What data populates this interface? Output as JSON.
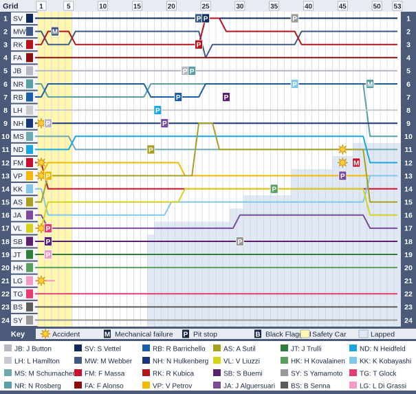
{
  "chart_data": {
    "type": "line",
    "header_label": "Grid",
    "lap_ticks": [
      "1",
      "5",
      "10",
      "15",
      "20",
      "25",
      "30",
      "35",
      "40",
      "45",
      "50",
      "53"
    ],
    "position_labels": [
      "1",
      "2",
      "3",
      "4",
      "5",
      "6",
      "7",
      "8",
      "9",
      "10",
      "11",
      "12",
      "13",
      "14",
      "15",
      "16",
      "17",
      "18",
      "19",
      "20",
      "21",
      "22",
      "23",
      "24"
    ],
    "grid": [
      "SV",
      "MW",
      "RK",
      "FA",
      "JB",
      "NR",
      "RB",
      "LH",
      "NH",
      "MS",
      "ND",
      "FM",
      "VP",
      "KK",
      "AS",
      "JA",
      "VL",
      "SB",
      "JT",
      "HK",
      "LG",
      "TG",
      "BS",
      "SY"
    ],
    "drivers": {
      "SV": {
        "color": "#0d2a5c",
        "light": false,
        "name": "S Vettel"
      },
      "MW": {
        "color": "#3d5a85",
        "light": false,
        "name": "M Webber"
      },
      "RK": {
        "color": "#b5121b",
        "light": false,
        "name": "R Kubica"
      },
      "FA": {
        "color": "#8a1010",
        "light": false,
        "name": "F Alonso"
      },
      "JB": {
        "color": "#b8b8c4",
        "light": true,
        "name": "J Button"
      },
      "NR": {
        "color": "#5a9ea6",
        "light": false,
        "name": "N Rosberg"
      },
      "RB": {
        "color": "#1a5ea8",
        "light": false,
        "name": "R Barrichello"
      },
      "LH": {
        "color": "#c9c9d2",
        "light": true,
        "name": "L Hamilton"
      },
      "NH": {
        "color": "#19357a",
        "light": false,
        "name": "N Hulkenberg"
      },
      "MS": {
        "color": "#6fa8b0",
        "light": false,
        "name": "M Schumacher"
      },
      "ND": {
        "color": "#1ba6e0",
        "light": false,
        "name": "N Heidfeld"
      },
      "FM": {
        "color": "#c8102e",
        "light": false,
        "name": "F Massa"
      },
      "VP": {
        "color": "#f5b800",
        "light": true,
        "name": "V Petrov"
      },
      "KK": {
        "color": "#7fc8e8",
        "light": true,
        "name": "K Kobayashi"
      },
      "AS": {
        "color": "#a7a020",
        "light": false,
        "name": "A Sutil"
      },
      "JA": {
        "color": "#7a4a9c",
        "light": false,
        "name": "J Alguersuari"
      },
      "VL": {
        "color": "#d7d21a",
        "light": true,
        "name": "V Liuzzi"
      },
      "SB": {
        "color": "#5a1f6e",
        "light": false,
        "name": "S Buemi"
      },
      "JT": {
        "color": "#2e7d3c",
        "light": false,
        "name": "J Trulli"
      },
      "HK": {
        "color": "#5a9f5e",
        "light": false,
        "name": "H Kovalainen"
      },
      "LG": {
        "color": "#f29bc7",
        "light": true,
        "name": "L Di Grassi"
      },
      "TG": {
        "color": "#e63c72",
        "light": false,
        "name": "T Glock"
      },
      "BS": {
        "color": "#5c5c5c",
        "light": false,
        "name": "B Senna"
      },
      "SY": {
        "color": "#9a9a9a",
        "light": false,
        "name": "S Yamamoto"
      }
    },
    "series": [
      {
        "code": "SV",
        "points": [
          [
            0,
            1
          ],
          [
            53,
            1
          ]
        ]
      },
      {
        "code": "MW",
        "points": [
          [
            0,
            2
          ],
          [
            1,
            2
          ],
          [
            2,
            3
          ],
          [
            5,
            3
          ],
          [
            6,
            2
          ],
          [
            24,
            2
          ],
          [
            25,
            4
          ],
          [
            26,
            3
          ],
          [
            38,
            3
          ],
          [
            39,
            2
          ],
          [
            53,
            2
          ]
        ]
      },
      {
        "code": "RK",
        "points": [
          [
            0,
            3
          ],
          [
            1,
            3
          ],
          [
            2,
            2
          ],
          [
            5,
            2
          ],
          [
            6,
            3
          ],
          [
            24,
            3
          ],
          [
            25,
            1
          ],
          [
            26,
            1
          ],
          [
            27,
            1
          ],
          [
            28,
            2
          ],
          [
            38,
            2
          ],
          [
            39,
            3
          ],
          [
            53,
            3
          ]
        ]
      },
      {
        "code": "FA",
        "points": [
          [
            0,
            4
          ],
          [
            1,
            4
          ],
          [
            2,
            4
          ],
          [
            53,
            4
          ]
        ]
      },
      {
        "code": "JB",
        "points": [
          [
            0,
            5
          ],
          [
            53,
            5
          ]
        ]
      },
      {
        "code": "NR",
        "points": [
          [
            0,
            6
          ],
          [
            1,
            6
          ],
          [
            2,
            7
          ],
          [
            16,
            7
          ],
          [
            17,
            6
          ],
          [
            48,
            6
          ],
          [
            49,
            10
          ],
          [
            53,
            10
          ]
        ]
      },
      {
        "code": "RB",
        "points": [
          [
            0,
            7
          ],
          [
            1,
            7
          ],
          [
            2,
            6
          ],
          [
            16,
            6
          ],
          [
            17,
            7
          ],
          [
            24,
            7
          ],
          [
            25,
            6
          ],
          [
            53,
            6
          ]
        ]
      },
      {
        "code": "LH",
        "points": [
          [
            0,
            8
          ],
          [
            53,
            8
          ]
        ]
      },
      {
        "code": "NH",
        "points": [
          [
            0,
            9
          ],
          [
            53,
            9
          ]
        ]
      },
      {
        "code": "MS",
        "points": [
          [
            0,
            10
          ],
          [
            5,
            10
          ],
          [
            6,
            11
          ],
          [
            53,
            11
          ]
        ]
      },
      {
        "code": "ND",
        "points": [
          [
            0,
            11
          ],
          [
            5,
            11
          ],
          [
            6,
            10
          ],
          [
            48,
            10
          ],
          [
            49,
            12
          ],
          [
            53,
            12
          ]
        ]
      },
      {
        "code": "FM",
        "points": [
          [
            0,
            12
          ],
          [
            1,
            12
          ],
          [
            2,
            14
          ],
          [
            53,
            14
          ]
        ]
      },
      {
        "code": "VP",
        "points": [
          [
            0,
            13
          ],
          [
            1,
            13
          ],
          [
            2,
            12
          ],
          [
            21,
            12
          ],
          [
            22,
            13
          ],
          [
            53,
            13
          ]
        ]
      },
      {
        "code": "KK",
        "points": [
          [
            0,
            14
          ],
          [
            1,
            14
          ],
          [
            2,
            16
          ],
          [
            19,
            16
          ],
          [
            20,
            15
          ],
          [
            48,
            15
          ],
          [
            49,
            13
          ],
          [
            53,
            13
          ]
        ]
      },
      {
        "code": "AS",
        "points": [
          [
            0,
            15
          ],
          [
            1,
            15
          ],
          [
            2,
            13
          ],
          [
            23,
            13
          ],
          [
            24,
            9
          ],
          [
            26,
            9
          ],
          [
            27,
            11
          ],
          [
            48,
            11
          ],
          [
            49,
            15
          ],
          [
            53,
            15
          ]
        ]
      },
      {
        "code": "JA",
        "points": [
          [
            0,
            16
          ],
          [
            1,
            16
          ],
          [
            2,
            17
          ],
          [
            29,
            17
          ],
          [
            30,
            16
          ],
          [
            48,
            16
          ],
          [
            49,
            17
          ],
          [
            53,
            17
          ]
        ]
      },
      {
        "code": "VL",
        "points": [
          [
            0,
            17
          ],
          [
            1,
            17
          ],
          [
            2,
            15
          ],
          [
            21,
            15
          ],
          [
            22,
            14
          ],
          [
            48,
            14
          ],
          [
            49,
            16
          ],
          [
            53,
            16
          ]
        ]
      },
      {
        "code": "SB",
        "points": [
          [
            0,
            18
          ],
          [
            1,
            18
          ],
          [
            2,
            18
          ],
          [
            53,
            18
          ]
        ]
      },
      {
        "code": "JT",
        "points": [
          [
            0,
            19
          ],
          [
            1,
            19
          ],
          [
            2,
            19
          ],
          [
            53,
            19
          ]
        ]
      },
      {
        "code": "HK",
        "points": [
          [
            0,
            20
          ],
          [
            53,
            20
          ]
        ]
      },
      {
        "code": "LG",
        "points": [
          [
            0,
            21
          ],
          [
            2,
            21
          ],
          [
            3,
            21
          ]
        ]
      },
      {
        "code": "TG",
        "points": [
          [
            0,
            22
          ],
          [
            53,
            22
          ]
        ]
      },
      {
        "code": "BS",
        "points": [
          [
            0,
            23
          ],
          [
            53,
            23
          ]
        ]
      },
      {
        "code": "SY",
        "points": [
          [
            0,
            24
          ],
          [
            53,
            24
          ]
        ]
      }
    ],
    "events": [
      {
        "type": "accident",
        "lap": 1,
        "pos": 9
      },
      {
        "type": "accident",
        "lap": 1,
        "pos": 12
      },
      {
        "type": "accident",
        "lap": 1,
        "pos": 13
      },
      {
        "type": "accident",
        "lap": 1,
        "pos": 17
      },
      {
        "type": "accident",
        "lap": 1,
        "pos": 21
      },
      {
        "type": "accident",
        "lap": 45,
        "pos": 11
      },
      {
        "type": "accident",
        "lap": 45,
        "pos": 12
      },
      {
        "type": "accident",
        "lap": 49,
        "pos": 6
      },
      {
        "type": "mechanical",
        "lap": 3,
        "pos": 2,
        "code": "MW"
      },
      {
        "type": "mechanical",
        "lap": 47,
        "pos": 12,
        "code": "FM"
      },
      {
        "type": "mechanical",
        "lap": 49,
        "pos": 6,
        "code": "NR"
      },
      {
        "type": "pit",
        "lap": 24,
        "pos": 1,
        "code": "MW"
      },
      {
        "type": "pit",
        "lap": 25,
        "pos": 1,
        "code": "SV"
      },
      {
        "type": "pit",
        "lap": 24,
        "pos": 3,
        "code": "RK"
      },
      {
        "type": "pit",
        "lap": 22,
        "pos": 5,
        "code": "JB"
      },
      {
        "type": "pit",
        "lap": 23,
        "pos": 5,
        "code": "NR"
      },
      {
        "type": "pit",
        "lap": 38,
        "pos": 1,
        "code": "SY"
      },
      {
        "type": "pit",
        "lap": 21,
        "pos": 7,
        "code": "RB"
      },
      {
        "type": "pit",
        "lap": 18,
        "pos": 8,
        "code": "ND"
      },
      {
        "type": "pit",
        "lap": 38,
        "pos": 6,
        "code": "KK"
      },
      {
        "type": "pit",
        "lap": 17,
        "pos": 11,
        "code": "AS"
      },
      {
        "type": "pit",
        "lap": 19,
        "pos": 9,
        "code": "JA"
      },
      {
        "type": "pit",
        "lap": 28,
        "pos": 7,
        "code": "SB"
      },
      {
        "type": "pit",
        "lap": 2,
        "pos": 9,
        "code": "JB"
      },
      {
        "type": "pit",
        "lap": 2,
        "pos": 13,
        "code": "VP"
      },
      {
        "type": "pit",
        "lap": 2,
        "pos": 18,
        "code": "SB"
      },
      {
        "type": "pit",
        "lap": 45,
        "pos": 13,
        "code": "JA"
      },
      {
        "type": "pit",
        "lap": 35,
        "pos": 14,
        "code": "HK"
      },
      {
        "type": "pit",
        "lap": 30,
        "pos": 18,
        "code": "SY"
      },
      {
        "type": "pit",
        "lap": 2,
        "pos": 17,
        "code": "TG"
      },
      {
        "type": "pit",
        "lap": 2,
        "pos": 19,
        "code": "LG"
      }
    ],
    "safety_car": {
      "from": 1,
      "to": 5
    },
    "lapped_region": [
      [
        53,
        11
      ],
      [
        47,
        11
      ],
      [
        47,
        12
      ],
      [
        44,
        12
      ],
      [
        44,
        13
      ],
      [
        38,
        13
      ],
      [
        38,
        15
      ],
      [
        31,
        15
      ],
      [
        31,
        16
      ],
      [
        29,
        16
      ],
      [
        29,
        17
      ],
      [
        18,
        17
      ],
      [
        18,
        18
      ],
      [
        17,
        18
      ],
      [
        17,
        25
      ],
      [
        53,
        25
      ]
    ],
    "legend": {
      "title": "Key",
      "items": [
        {
          "kind": "accident",
          "label": "Accident"
        },
        {
          "kind": "mechanical",
          "letter": "M",
          "label": "Mechanical failure"
        },
        {
          "kind": "pit",
          "letter": "P",
          "label": "Pit stop"
        },
        {
          "kind": "black",
          "letter": "B",
          "label": "Black Flagged"
        },
        {
          "kind": "safetycar",
          "label": "Safety Car"
        },
        {
          "kind": "lapped",
          "label": "Lapped"
        }
      ]
    },
    "drivers_key": [
      [
        "JB",
        "J Button"
      ],
      [
        "SV",
        "S Vettel"
      ],
      [
        "RB",
        "R Barrichello"
      ],
      [
        "AS",
        "A Sutil"
      ],
      [
        "JT",
        "J Trulli"
      ],
      [
        "ND",
        "N Heidfeld"
      ],
      [
        "LH",
        "L Hamilton"
      ],
      [
        "MW",
        "M Webber"
      ],
      [
        "NH",
        "N Hulkenberg"
      ],
      [
        "VL",
        "V Liuzzi"
      ],
      [
        "HK",
        "H Kovalainen"
      ],
      [
        "KK",
        "K Kobayashi"
      ],
      [
        "MS",
        "M Schumacher"
      ],
      [
        "FM",
        "F Massa"
      ],
      [
        "RK",
        "R Kubica"
      ],
      [
        "SB",
        "S Buemi"
      ],
      [
        "SY",
        "S Yamamoto"
      ],
      [
        "TG",
        "T Glock"
      ],
      [
        "NR",
        "N Rosberg"
      ],
      [
        "FA",
        "F Alonso"
      ],
      [
        "VP",
        "V Petrov"
      ],
      [
        "JA",
        "J Alguersuari"
      ],
      [
        "BS",
        "B Senna"
      ],
      [
        "LG",
        "L Di Grassi"
      ]
    ]
  }
}
